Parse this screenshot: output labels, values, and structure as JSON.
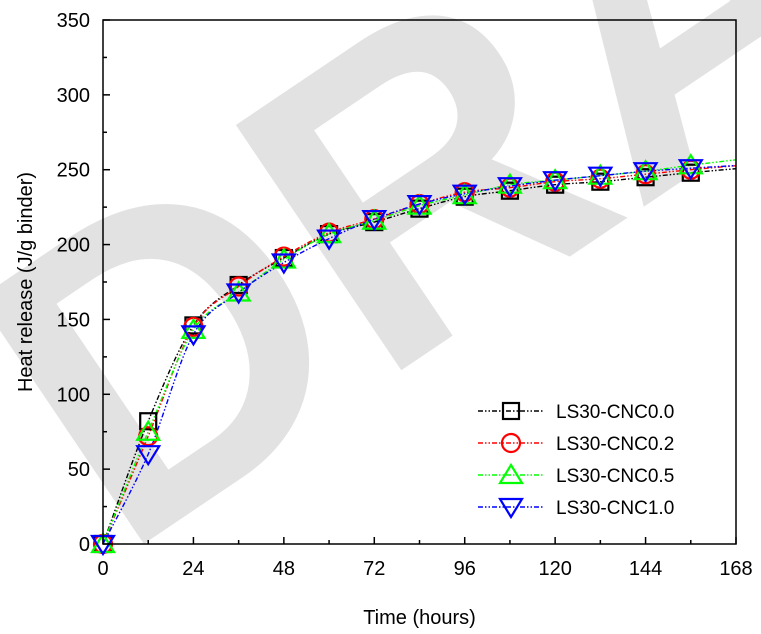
{
  "chart_data": {
    "type": "line",
    "xlabel": "Time (hours)",
    "ylabel": "Heat release (J/g binder)",
    "xlim": [
      0,
      168
    ],
    "ylim": [
      0,
      350
    ],
    "xticks": [
      0,
      24,
      48,
      72,
      96,
      120,
      144,
      168
    ],
    "yticks": [
      0,
      50,
      100,
      150,
      200,
      250,
      300,
      350
    ],
    "grid": false,
    "legend_position": "bottom-right",
    "watermark": "DRAFT",
    "series": [
      {
        "name": "LS30-CNC0.0",
        "color": "#000000",
        "marker": "square",
        "x": [
          0,
          12,
          24,
          36,
          48,
          60,
          72,
          84,
          96,
          108,
          120,
          132,
          144,
          156
        ],
        "y": [
          0,
          82,
          146,
          173,
          191,
          207,
          215,
          224,
          232,
          236,
          240,
          242,
          245,
          248
        ]
      },
      {
        "name": "LS30-CNC0.2",
        "color": "#ff0000",
        "marker": "circle",
        "x": [
          0,
          12,
          24,
          36,
          48,
          60,
          72,
          84,
          96,
          108,
          120,
          132,
          144,
          156
        ],
        "y": [
          0,
          72,
          145,
          172,
          192,
          208,
          217,
          227,
          235,
          238,
          242,
          244,
          247,
          250
        ]
      },
      {
        "name": "LS30-CNC0.5",
        "color": "#00ff00",
        "marker": "triangle-up",
        "x": [
          0,
          12,
          24,
          36,
          48,
          60,
          72,
          84,
          96,
          108,
          120,
          132,
          144,
          156
        ],
        "y": [
          0,
          75,
          143,
          168,
          190,
          207,
          216,
          226,
          233,
          240,
          243,
          246,
          249,
          253
        ]
      },
      {
        "name": "LS30-CNC1.0",
        "color": "#0000ff",
        "marker": "triangle-down",
        "x": [
          0,
          12,
          24,
          36,
          48,
          60,
          72,
          84,
          96,
          108,
          120,
          132,
          144,
          156
        ],
        "y": [
          0,
          60,
          140,
          168,
          188,
          204,
          217,
          227,
          234,
          239,
          243,
          246,
          249,
          251
        ]
      }
    ]
  }
}
